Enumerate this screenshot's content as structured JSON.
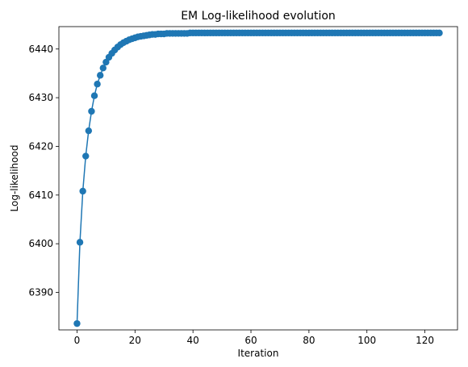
{
  "chart_data": {
    "type": "line",
    "title": "EM Log-likelihood evolution",
    "xlabel": "Iteration",
    "ylabel": "Log-likelihood",
    "xlim": [
      -6.25,
      131.25
    ],
    "ylim": [
      6382.3,
      6444.6
    ],
    "xticks": [
      0,
      20,
      40,
      60,
      80,
      100,
      120
    ],
    "yticks": [
      6390,
      6400,
      6410,
      6420,
      6430,
      6440
    ],
    "grid": false,
    "legend": "none",
    "series": [
      {
        "color": "#1f77b4",
        "marker": "circle",
        "x": [
          0,
          1,
          2,
          3,
          4,
          5,
          6,
          7,
          8,
          9,
          10,
          11,
          12,
          13,
          14,
          15,
          16,
          17,
          18,
          19,
          20,
          21,
          22,
          23,
          24,
          25,
          26,
          27,
          28,
          29,
          30,
          31,
          32,
          33,
          34,
          35,
          36,
          37,
          38,
          39,
          40,
          41,
          42,
          43,
          44,
          45,
          46,
          47,
          48,
          49,
          50,
          51,
          52,
          53,
          54,
          55,
          56,
          57,
          58,
          59,
          60,
          61,
          62,
          63,
          64,
          65,
          66,
          67,
          68,
          69,
          70,
          71,
          72,
          73,
          74,
          75,
          76,
          77,
          78,
          79,
          80,
          81,
          82,
          83,
          84,
          85,
          86,
          87,
          88,
          89,
          90,
          91,
          92,
          93,
          94,
          95,
          96,
          97,
          98,
          99,
          100,
          101,
          102,
          103,
          104,
          105,
          106,
          107,
          108,
          109,
          110,
          111,
          112,
          113,
          114,
          115,
          116,
          117,
          118,
          119,
          120,
          121,
          122,
          123,
          124,
          125
        ],
        "y": [
          6383.6,
          6400.3,
          6410.8,
          6418.0,
          6423.2,
          6427.2,
          6430.4,
          6432.8,
          6434.6,
          6436.1,
          6437.3,
          6438.3,
          6439.1,
          6439.8,
          6440.4,
          6440.9,
          6441.3,
          6441.6,
          6441.9,
          6442.1,
          6442.3,
          6442.5,
          6442.6,
          6442.7,
          6442.8,
          6442.9,
          6443.0,
          6443.0,
          6443.1,
          6443.1,
          6443.1,
          6443.2,
          6443.2,
          6443.2,
          6443.2,
          6443.2,
          6443.2,
          6443.2,
          6443.2,
          6443.3,
          6443.3,
          6443.3,
          6443.3,
          6443.3,
          6443.3,
          6443.3,
          6443.3,
          6443.3,
          6443.3,
          6443.3,
          6443.3,
          6443.3,
          6443.3,
          6443.3,
          6443.3,
          6443.3,
          6443.3,
          6443.3,
          6443.3,
          6443.3,
          6443.3,
          6443.3,
          6443.3,
          6443.3,
          6443.3,
          6443.3,
          6443.3,
          6443.3,
          6443.3,
          6443.3,
          6443.3,
          6443.3,
          6443.3,
          6443.3,
          6443.3,
          6443.3,
          6443.3,
          6443.3,
          6443.3,
          6443.3,
          6443.3,
          6443.3,
          6443.3,
          6443.3,
          6443.3,
          6443.3,
          6443.3,
          6443.3,
          6443.3,
          6443.3,
          6443.3,
          6443.3,
          6443.3,
          6443.3,
          6443.3,
          6443.3,
          6443.3,
          6443.3,
          6443.3,
          6443.3,
          6443.3,
          6443.3,
          6443.3,
          6443.3,
          6443.3,
          6443.3,
          6443.3,
          6443.3,
          6443.3,
          6443.3,
          6443.3,
          6443.3,
          6443.3,
          6443.3,
          6443.3,
          6443.3,
          6443.3,
          6443.3,
          6443.3,
          6443.3,
          6443.3,
          6443.3,
          6443.3,
          6443.3,
          6443.3,
          6443.3
        ]
      }
    ]
  }
}
